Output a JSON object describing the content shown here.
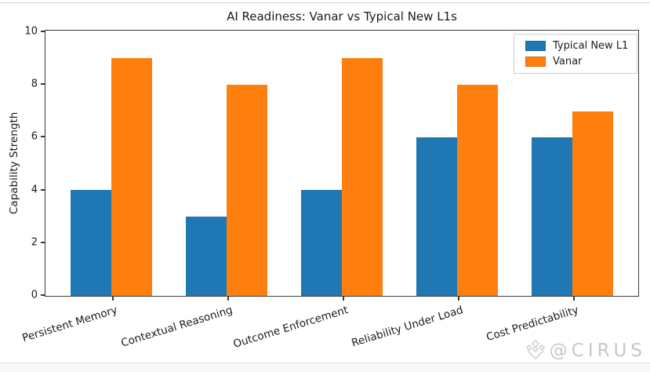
{
  "watermark": {
    "handle": "@CIRUS",
    "logo_icon": "cirus-diamond-logo"
  },
  "colors": {
    "typical_new_l1": "#1f77b4",
    "vanar": "#ff7f0e",
    "spine": "#3a3a3a",
    "watermark_gray": "#c7c7c7"
  },
  "chart_data": {
    "type": "bar",
    "title": "AI Readiness: Vanar vs Typical New L1s",
    "xlabel": "",
    "ylabel": "Capability Strength",
    "categories": [
      "Persistent Memory",
      "Contextual Reasoning",
      "Outcome Enforcement",
      "Reliability Under Load",
      "Cost Predictability"
    ],
    "series": [
      {
        "name": "Typical New L1",
        "color": "#1f77b4",
        "values": [
          4,
          3,
          4,
          6,
          6
        ]
      },
      {
        "name": "Vanar",
        "color": "#ff7f0e",
        "values": [
          9,
          8,
          9,
          8,
          7
        ]
      }
    ],
    "ylim": [
      0,
      10
    ],
    "yticks": [
      0,
      2,
      4,
      6,
      8,
      10
    ],
    "grid": false,
    "legend_position": "upper right",
    "xtick_rotation_deg": 17
  }
}
